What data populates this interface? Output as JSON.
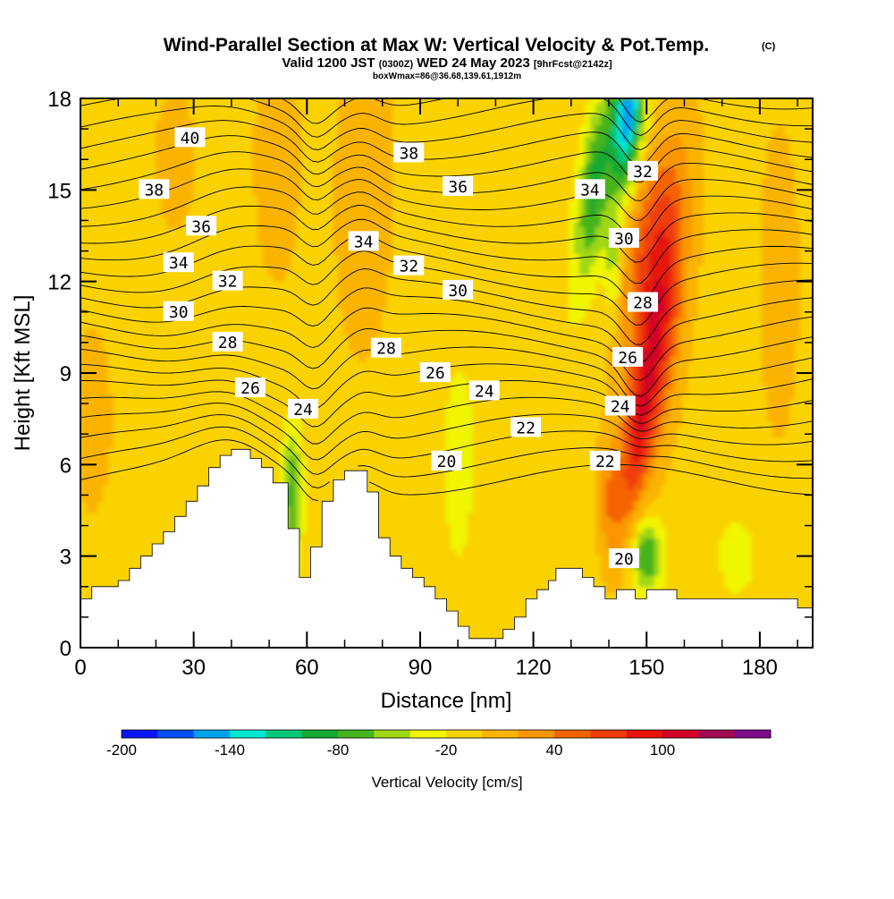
{
  "chart_data": {
    "type": "heatmap",
    "title": "Wind-Parallel Section at Max W: Vertical Velocity & Pot.Temp.",
    "title_mark": "(C)",
    "subtitle_parts": {
      "valid": "Valid 1200 JST",
      "utc": "(0300Z)",
      "date": "WED 24 May 2023",
      "fcst": "[9hrFcst@2142z]"
    },
    "subtitle2": "boxWmax=86@36.68,139.61,1912m",
    "xlabel": "Distance [nm]",
    "ylabel": "Height [Kft MSL]",
    "xlim": [
      0,
      194
    ],
    "ylim": [
      0,
      18
    ],
    "x_ticks": [
      "0",
      "30",
      "60",
      "90",
      "120",
      "150",
      "180"
    ],
    "y_ticks": [
      "0",
      "3",
      "6",
      "9",
      "12",
      "15",
      "18"
    ],
    "colorbar": {
      "label": "Vertical Velocity [cm/s]",
      "tick_labels": [
        "-200",
        "-140",
        "-80",
        "-20",
        "40",
        "100"
      ],
      "colors": [
        "#0a14ff",
        "#0550f5",
        "#00a0f0",
        "#00e6d2",
        "#00c878",
        "#14aa32",
        "#46b41e",
        "#a0d714",
        "#f0f500",
        "#fad200",
        "#fab400",
        "#fa9600",
        "#f56400",
        "#f03c0a",
        "#e6140a",
        "#d20028",
        "#a00a50",
        "#7d0a87"
      ]
    },
    "theta_contour_labels": [
      {
        "value": "40",
        "x": 29,
        "y": 16.7
      },
      {
        "value": "38",
        "x": 19.5,
        "y": 15.0
      },
      {
        "value": "36",
        "x": 32,
        "y": 13.8
      },
      {
        "value": "34",
        "x": 26,
        "y": 12.6
      },
      {
        "value": "32",
        "x": 39,
        "y": 12.0
      },
      {
        "value": "30",
        "x": 26,
        "y": 11.0
      },
      {
        "value": "28",
        "x": 39,
        "y": 10.0
      },
      {
        "value": "26",
        "x": 45,
        "y": 8.5
      },
      {
        "value": "24",
        "x": 59,
        "y": 7.8
      },
      {
        "value": "38",
        "x": 87,
        "y": 16.2
      },
      {
        "value": "36",
        "x": 100,
        "y": 15.1
      },
      {
        "value": "34",
        "x": 75,
        "y": 13.3
      },
      {
        "value": "32",
        "x": 87,
        "y": 12.5
      },
      {
        "value": "30",
        "x": 100,
        "y": 11.7
      },
      {
        "value": "28",
        "x": 81,
        "y": 9.8
      },
      {
        "value": "26",
        "x": 94,
        "y": 9.0
      },
      {
        "value": "24",
        "x": 107,
        "y": 8.4
      },
      {
        "value": "22",
        "x": 118,
        "y": 7.2
      },
      {
        "value": "20",
        "x": 97,
        "y": 6.1
      },
      {
        "value": "34",
        "x": 135,
        "y": 15.0
      },
      {
        "value": "32",
        "x": 149,
        "y": 15.6
      },
      {
        "value": "30",
        "x": 144,
        "y": 13.4
      },
      {
        "value": "28",
        "x": 149,
        "y": 11.3
      },
      {
        "value": "26",
        "x": 145,
        "y": 9.5
      },
      {
        "value": "24",
        "x": 143,
        "y": 7.9
      },
      {
        "value": "22",
        "x": 139,
        "y": 6.1
      },
      {
        "value": "20",
        "x": 144,
        "y": 2.9
      }
    ],
    "features": [
      {
        "name": "updraft",
        "max_vertical_velocity": 100,
        "x": 153,
        "y": 10
      },
      {
        "name": "downdraft",
        "min_vertical_velocity": -160,
        "x": 143,
        "y": 17
      }
    ]
  }
}
